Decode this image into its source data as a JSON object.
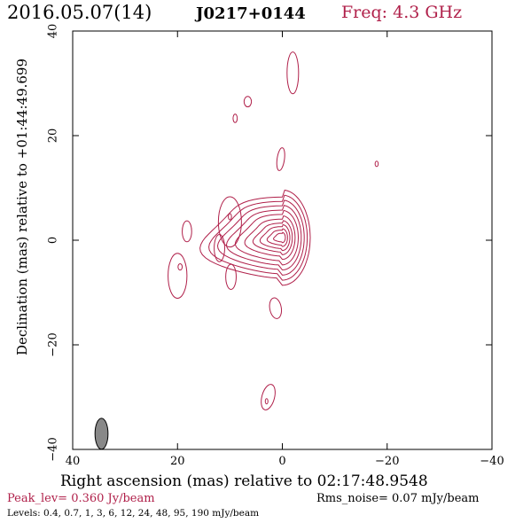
{
  "header": {
    "date_label": "2016.05.07(14)",
    "source": "J0217+0144",
    "freq": "Freq: 4.3 GHz"
  },
  "footer": {
    "peak": "Peak_lev=  0.360 Jy/beam",
    "rms": "Rms_noise= 0.07 mJy/beam",
    "levels": "Levels: 0.4, 0.7,   1,   3,   6,  12,  24,  48,  95, 190 mJy/beam"
  },
  "colors": {
    "contour": "#b0204a",
    "beam": "#888888"
  },
  "chart_data": {
    "type": "contour",
    "xlabel": "Right ascension (mas) relative to 02:17:48.9548",
    "ylabel": "Declination (mas) relative to +01:44:49.699",
    "xlim": [
      40,
      -40
    ],
    "ylim": [
      -40,
      40
    ],
    "x_ticks": [
      40,
      20,
      0,
      -20,
      -40
    ],
    "y_ticks": [
      -40,
      -20,
      0,
      20,
      40
    ],
    "x_tick_labels": [
      "40",
      "20",
      "0",
      "−20",
      "−40"
    ],
    "y_tick_labels": [
      "−40",
      "−20",
      "0",
      "20",
      "40"
    ],
    "levels_mjy": [
      0.4,
      0.7,
      1,
      3,
      6,
      12,
      24,
      48,
      95,
      190
    ],
    "beam": {
      "x": 34.5,
      "y": -37,
      "major": 4.0,
      "minor": 1.8,
      "pa": 0
    },
    "core": {
      "x": 0,
      "y": 0.5,
      "widths": [
        14,
        12.5,
        11,
        9.5,
        8,
        6.4,
        5,
        3.8,
        2.6,
        1.5
      ],
      "height_ratio": 1.05
    },
    "components": [
      {
        "x": -2.0,
        "y": 32,
        "rx": 1.1,
        "ry": 4.0,
        "rot": 0
      },
      {
        "x": 6.6,
        "y": 26.5,
        "rx": 0.7,
        "ry": 1.0,
        "rot": 0
      },
      {
        "x": 9.0,
        "y": 23.3,
        "rx": 0.4,
        "ry": 0.8,
        "rot": 0
      },
      {
        "x": 0.3,
        "y": 15.5,
        "rx": 0.7,
        "ry": 2.2,
        "rot": 8
      },
      {
        "x": -18.0,
        "y": 14.6,
        "rx": 0.3,
        "ry": 0.5,
        "rot": 0
      },
      {
        "x": 10.0,
        "y": 3.5,
        "rx": 2.2,
        "ry": 4.8,
        "rot": 0
      },
      {
        "x": 10.0,
        "y": 4.5,
        "rx": 0.3,
        "ry": 0.6,
        "rot": 0
      },
      {
        "x": 18.2,
        "y": 1.7,
        "rx": 0.9,
        "ry": 2.0,
        "rot": 0
      },
      {
        "x": 20.0,
        "y": -6.8,
        "rx": 1.8,
        "ry": 4.3,
        "rot": 0
      },
      {
        "x": 19.5,
        "y": -5.1,
        "rx": 0.4,
        "ry": 0.6,
        "rot": 0
      },
      {
        "x": 9.8,
        "y": -7.0,
        "rx": 1.0,
        "ry": 2.4,
        "rot": 0
      },
      {
        "x": 12.0,
        "y": -1.5,
        "rx": 1.0,
        "ry": 2.6,
        "rot": 0
      },
      {
        "x": 1.3,
        "y": -13.0,
        "rx": 1.1,
        "ry": 2.0,
        "rot": -10
      },
      {
        "x": 2.7,
        "y": -30.0,
        "rx": 1.2,
        "ry": 2.5,
        "rot": 15
      },
      {
        "x": 3.0,
        "y": -30.8,
        "rx": 0.25,
        "ry": 0.5,
        "rot": 0
      }
    ]
  }
}
